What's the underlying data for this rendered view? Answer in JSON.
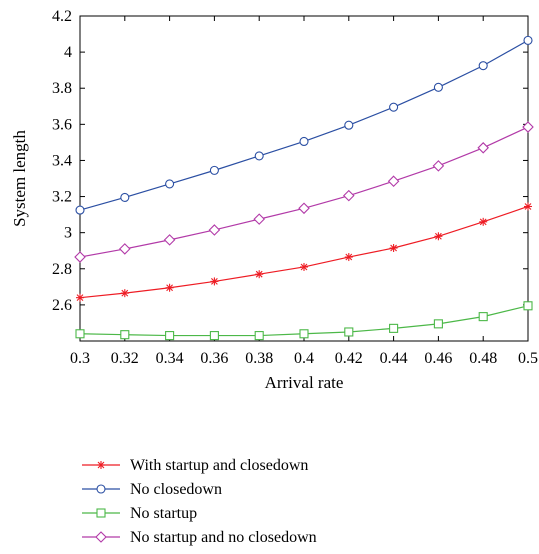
{
  "chart_data": {
    "type": "line",
    "xlabel": "Arrival rate",
    "ylabel": "System length",
    "xlim": [
      0.3,
      0.5
    ],
    "ylim": [
      2.4,
      4.2
    ],
    "x": [
      0.3,
      0.32,
      0.34,
      0.36,
      0.38,
      0.4,
      0.42,
      0.44,
      0.46,
      0.48,
      0.5
    ],
    "x_tick_labels": [
      "0.3",
      "0.32",
      "0.34",
      "0.36",
      "0.38",
      "0.4",
      "0.42",
      "0.44",
      "0.46",
      "0.48",
      "0.5"
    ],
    "y_ticks": [
      2.6,
      2.8,
      3,
      3.2,
      3.4,
      3.6,
      3.8,
      4,
      4.2
    ],
    "y_tick_labels": [
      "2.6",
      "2.8",
      "3",
      "3.2",
      "3.4",
      "3.6",
      "3.8",
      "4",
      "4.2"
    ],
    "grid": false,
    "legend_position": "below the plot",
    "series": [
      {
        "name": "With startup and closedown",
        "color": "#ee1c24",
        "marker": "star",
        "values": [
          2.64,
          2.665,
          2.695,
          2.73,
          2.77,
          2.81,
          2.865,
          2.915,
          2.98,
          3.06,
          3.145
        ]
      },
      {
        "name": "No closedown",
        "color": "#2b4fa3",
        "marker": "circle",
        "values": [
          3.125,
          3.195,
          3.27,
          3.345,
          3.425,
          3.505,
          3.595,
          3.695,
          3.805,
          3.925,
          4.065
        ]
      },
      {
        "name": "No startup",
        "color": "#4cb848",
        "marker": "square",
        "values": [
          2.44,
          2.435,
          2.43,
          2.43,
          2.43,
          2.44,
          2.45,
          2.47,
          2.495,
          2.535,
          2.595
        ]
      },
      {
        "name": "No startup and no closedown",
        "color": "#b23aa8",
        "marker": "diamond",
        "values": [
          2.865,
          2.91,
          2.96,
          3.015,
          3.075,
          3.135,
          3.205,
          3.285,
          3.37,
          3.47,
          3.585
        ]
      }
    ]
  }
}
